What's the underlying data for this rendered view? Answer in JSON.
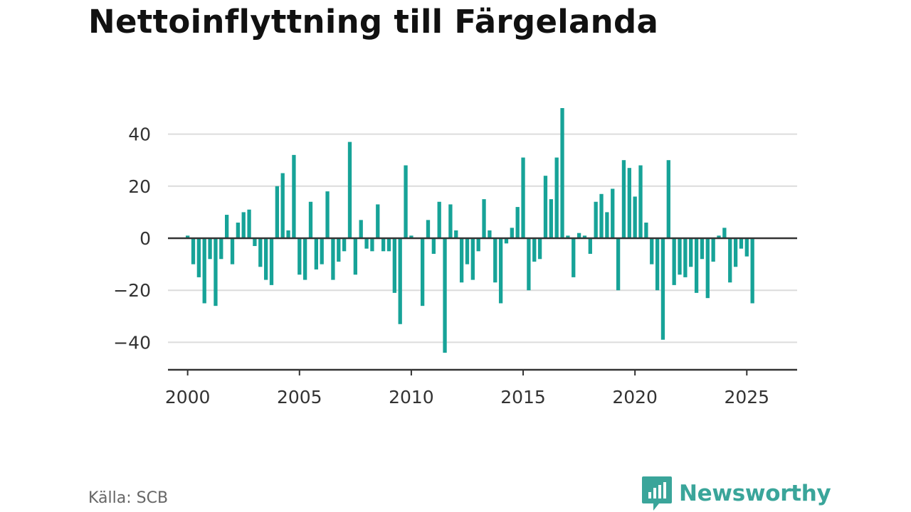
{
  "title": "Nettoinflyttning till Färgelanda",
  "source": "Källa: SCB",
  "brand": {
    "name": "Newsworthy",
    "icon": "newsworthy-logo-icon",
    "color": "#3aa59a"
  },
  "colors": {
    "bar": "#17a398",
    "grid": "#dcdcdc",
    "zero_line": "#333333",
    "axis": "#333333"
  },
  "chart_data": {
    "type": "bar",
    "title": "Nettoinflyttning till Färgelanda",
    "xlabel": "",
    "ylabel": "",
    "frequency": "quarterly",
    "ylim": [
      -50,
      50
    ],
    "yticks": [
      -40,
      -20,
      0,
      20,
      40
    ],
    "ytick_labels": [
      "−40",
      "−20",
      "0",
      "20",
      "40"
    ],
    "xlim": [
      1999.12,
      2027.25
    ],
    "xticks": [
      2000,
      2005,
      2010,
      2015,
      2020,
      2025
    ],
    "xtick_labels": [
      "2000",
      "2005",
      "2010",
      "2015",
      "2020",
      "2025"
    ],
    "grid": true,
    "legend": "none",
    "categories": [
      "2000 Q1",
      "2000 Q2",
      "2000 Q3",
      "2000 Q4",
      "2001 Q1",
      "2001 Q2",
      "2001 Q3",
      "2001 Q4",
      "2002 Q1",
      "2002 Q2",
      "2002 Q3",
      "2002 Q4",
      "2003 Q1",
      "2003 Q2",
      "2003 Q3",
      "2003 Q4",
      "2004 Q1",
      "2004 Q2",
      "2004 Q3",
      "2004 Q4",
      "2005 Q1",
      "2005 Q2",
      "2005 Q3",
      "2005 Q4",
      "2006 Q1",
      "2006 Q2",
      "2006 Q3",
      "2006 Q4",
      "2007 Q1",
      "2007 Q2",
      "2007 Q3",
      "2007 Q4",
      "2008 Q1",
      "2008 Q2",
      "2008 Q3",
      "2008 Q4",
      "2009 Q1",
      "2009 Q2",
      "2009 Q3",
      "2009 Q4",
      "2010 Q1",
      "2010 Q2",
      "2010 Q3",
      "2010 Q4",
      "2011 Q1",
      "2011 Q2",
      "2011 Q3",
      "2011 Q4",
      "2012 Q1",
      "2012 Q2",
      "2012 Q3",
      "2012 Q4",
      "2013 Q1",
      "2013 Q2",
      "2013 Q3",
      "2013 Q4",
      "2014 Q1",
      "2014 Q2",
      "2014 Q3",
      "2014 Q4",
      "2015 Q1",
      "2015 Q2",
      "2015 Q3",
      "2015 Q4",
      "2016 Q1",
      "2016 Q2",
      "2016 Q3",
      "2016 Q4",
      "2017 Q1",
      "2017 Q2",
      "2017 Q3",
      "2017 Q4",
      "2018 Q1",
      "2018 Q2",
      "2018 Q3",
      "2018 Q4",
      "2019 Q1",
      "2019 Q2",
      "2019 Q3",
      "2019 Q4",
      "2020 Q1",
      "2020 Q2",
      "2020 Q3",
      "2020 Q4",
      "2021 Q1",
      "2021 Q2",
      "2021 Q3",
      "2021 Q4",
      "2022 Q1",
      "2022 Q2",
      "2022 Q3",
      "2022 Q4",
      "2023 Q1",
      "2023 Q2",
      "2023 Q3",
      "2023 Q4",
      "2024 Q1",
      "2024 Q2",
      "2024 Q3",
      "2024 Q4",
      "2025 Q1",
      "2025 Q2",
      "2025 Q3"
    ],
    "values": [
      1,
      -10,
      -15,
      -25,
      -8,
      -26,
      -8,
      9,
      -10,
      6,
      10,
      11,
      -3,
      -11,
      -16,
      -18,
      20,
      25,
      3,
      32,
      -14,
      -16,
      14,
      -12,
      -10,
      18,
      -16,
      -9,
      -5,
      37,
      -14,
      7,
      -4,
      -5,
      13,
      -5,
      -5,
      -21,
      -33,
      28,
      1,
      0,
      -26,
      7,
      -6,
      14,
      -44,
      13,
      3,
      -17,
      -10,
      -16,
      -5,
      15,
      3,
      -17,
      -25,
      -2,
      4,
      12,
      31,
      -20,
      -9,
      -8,
      24,
      15,
      31,
      50,
      1,
      -15,
      2,
      1,
      -6,
      14,
      17,
      10,
      19,
      -20,
      30,
      27,
      16,
      28,
      6,
      -10,
      -20,
      -39,
      30,
      -18,
      -14,
      -15,
      -11,
      -21,
      -8,
      -23,
      -9,
      1,
      4,
      -17,
      -11,
      -4,
      -7,
      -25,
      0
    ]
  }
}
